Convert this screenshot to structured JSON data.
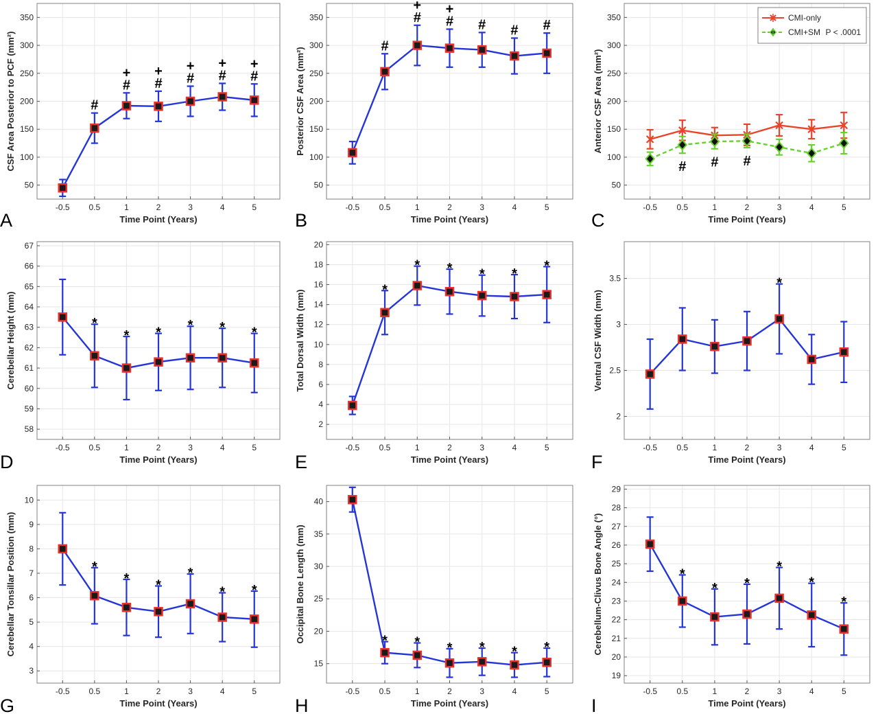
{
  "colors": {
    "blue": "#2435d8",
    "marker_red": "#e8312d",
    "marker_dark": "#1a1a1a",
    "cmi_only": "#e8442a",
    "cmi_sm": "#67d12e",
    "grid": "#e6e6e6",
    "frame": "#808080"
  },
  "chart_data": [
    {
      "type": "line",
      "panel": "A",
      "xlabel": "Time Point (Years)",
      "ylabel": "CSF Area Posterior to PCF (mm²)",
      "categories": [
        "-0.5",
        "0.5",
        "1",
        "2",
        "3",
        "4",
        "5"
      ],
      "ylim": [
        25,
        375
      ],
      "yticks": [
        50,
        100,
        150,
        200,
        250,
        300,
        350
      ],
      "series": [
        {
          "values": [
            45,
            152,
            192,
            191,
            200,
            208,
            202
          ],
          "err": [
            15,
            27,
            23,
            27,
            27,
            24,
            29
          ]
        }
      ],
      "annotations": [
        {
          "x": 1,
          "text": [
            "#"
          ]
        },
        {
          "x": 2,
          "text": [
            "+",
            "#"
          ]
        },
        {
          "x": 3,
          "text": [
            "+",
            "#"
          ]
        },
        {
          "x": 4,
          "text": [
            "+",
            "#"
          ]
        },
        {
          "x": 5,
          "text": [
            "+",
            "#"
          ]
        },
        {
          "x": 6,
          "text": [
            "+",
            "#"
          ]
        }
      ]
    },
    {
      "type": "line",
      "panel": "B",
      "xlabel": "Time Point (Years)",
      "ylabel": "Posterior CSF Area (mm²)",
      "categories": [
        "-0.5",
        "0.5",
        "1",
        "2",
        "3",
        "4",
        "5"
      ],
      "ylim": [
        25,
        375
      ],
      "yticks": [
        50,
        100,
        150,
        200,
        250,
        300,
        350
      ],
      "series": [
        {
          "values": [
            108,
            253,
            300,
            295,
            292,
            281,
            286
          ],
          "err": [
            20,
            32,
            36,
            34,
            31,
            32,
            36
          ]
        }
      ],
      "annotations": [
        {
          "x": 1,
          "text": [
            "#"
          ]
        },
        {
          "x": 2,
          "text": [
            "+",
            "#"
          ]
        },
        {
          "x": 3,
          "text": [
            "+",
            "#"
          ]
        },
        {
          "x": 4,
          "text": [
            "#"
          ]
        },
        {
          "x": 5,
          "text": [
            "#"
          ]
        },
        {
          "x": 6,
          "text": [
            "#"
          ]
        }
      ]
    },
    {
      "type": "line",
      "panel": "C",
      "xlabel": "Time Point (Years)",
      "ylabel": "Anterior CSF Area (mm²)",
      "categories": [
        "-0.5",
        "0.5",
        "1",
        "2",
        "3",
        "4",
        "5"
      ],
      "ylim": [
        25,
        375
      ],
      "yticks": [
        50,
        100,
        150,
        200,
        250,
        300,
        350
      ],
      "series": [
        {
          "name": "CMI-only",
          "values": [
            132,
            148,
            139,
            140,
            157,
            150,
            157
          ],
          "err": [
            17,
            18,
            14,
            19,
            19,
            17,
            23
          ]
        },
        {
          "name": "CMI+SM",
          "values": [
            97,
            122,
            128,
            129,
            118,
            107,
            125
          ],
          "err": [
            12,
            15,
            13,
            12,
            14,
            15,
            19
          ]
        }
      ],
      "legend_note": "P < .0001",
      "annotations": [
        {
          "x": 1,
          "text": [
            "#"
          ]
        },
        {
          "x": 2,
          "text": [
            "#"
          ]
        },
        {
          "x": 3,
          "text": [
            "#"
          ]
        }
      ]
    },
    {
      "type": "line",
      "panel": "D",
      "xlabel": "Time Point (Years)",
      "ylabel": "Cerebellar Height (mm)",
      "categories": [
        "-0.5",
        "0.5",
        "1",
        "2",
        "3",
        "4",
        "5"
      ],
      "ylim": [
        57.5,
        67.2
      ],
      "yticks": [
        58,
        59,
        60,
        61,
        62,
        63,
        64,
        65,
        66,
        67
      ],
      "series": [
        {
          "values": [
            63.5,
            61.6,
            61.0,
            61.3,
            61.5,
            61.5,
            61.25
          ],
          "err": [
            1.85,
            1.55,
            1.55,
            1.4,
            1.55,
            1.45,
            1.45
          ]
        }
      ],
      "annotations": [
        {
          "x": 1,
          "text": [
            "*"
          ]
        },
        {
          "x": 2,
          "text": [
            "*"
          ]
        },
        {
          "x": 3,
          "text": [
            "*"
          ]
        },
        {
          "x": 4,
          "text": [
            "*"
          ]
        },
        {
          "x": 5,
          "text": [
            "*"
          ]
        },
        {
          "x": 6,
          "text": [
            "*"
          ]
        }
      ]
    },
    {
      "type": "line",
      "panel": "E",
      "xlabel": "Time Point (Years)",
      "ylabel": "Total Dorsal Width (mm)",
      "categories": [
        "-0.5",
        "0.5",
        "1",
        "2",
        "3",
        "4",
        "5"
      ],
      "ylim": [
        0.5,
        20.3
      ],
      "yticks": [
        2,
        4,
        6,
        8,
        10,
        12,
        14,
        16,
        18,
        20
      ],
      "series": [
        {
          "values": [
            3.9,
            13.2,
            15.9,
            15.3,
            14.9,
            14.8,
            15.0
          ],
          "err": [
            0.9,
            2.2,
            1.95,
            2.25,
            2.05,
            2.2,
            2.8
          ]
        }
      ],
      "annotations": [
        {
          "x": 1,
          "text": [
            "*"
          ]
        },
        {
          "x": 2,
          "text": [
            "*"
          ]
        },
        {
          "x": 3,
          "text": [
            "*"
          ]
        },
        {
          "x": 4,
          "text": [
            "*"
          ]
        },
        {
          "x": 5,
          "text": [
            "*"
          ]
        },
        {
          "x": 6,
          "text": [
            "*"
          ]
        }
      ]
    },
    {
      "type": "line",
      "panel": "F",
      "xlabel": "Time Point (Years)",
      "ylabel": "Ventral CSF Width (mm)",
      "categories": [
        "-0.5",
        "0.5",
        "1",
        "2",
        "3",
        "4",
        "5"
      ],
      "ylim": [
        1.75,
        3.9
      ],
      "yticks": [
        2,
        2.5,
        3,
        3.5
      ],
      "series": [
        {
          "values": [
            2.46,
            2.84,
            2.76,
            2.82,
            3.06,
            2.62,
            2.7
          ],
          "err": [
            0.38,
            0.34,
            0.29,
            0.32,
            0.38,
            0.27,
            0.33
          ]
        }
      ],
      "annotations": [
        {
          "x": 4,
          "text": [
            "*"
          ]
        }
      ]
    },
    {
      "type": "line",
      "panel": "G",
      "xlabel": "Time Point (Years)",
      "ylabel": "Cerebellar Tonsillar Position (mm)",
      "categories": [
        "-0.5",
        "0.5",
        "1",
        "2",
        "3",
        "4",
        "5"
      ],
      "ylim": [
        2.5,
        10.6
      ],
      "yticks": [
        3,
        4,
        5,
        6,
        7,
        8,
        9,
        10
      ],
      "series": [
        {
          "values": [
            8.0,
            6.08,
            5.6,
            5.43,
            5.75,
            5.2,
            5.12
          ],
          "err": [
            1.48,
            1.15,
            1.15,
            1.05,
            1.22,
            1.0,
            1.15
          ]
        }
      ],
      "annotations": [
        {
          "x": 1,
          "text": [
            "*"
          ]
        },
        {
          "x": 2,
          "text": [
            "*"
          ]
        },
        {
          "x": 3,
          "text": [
            "*"
          ]
        },
        {
          "x": 4,
          "text": [
            "*"
          ]
        },
        {
          "x": 5,
          "text": [
            "*"
          ]
        },
        {
          "x": 6,
          "text": [
            "*"
          ]
        }
      ]
    },
    {
      "type": "line",
      "panel": "H",
      "xlabel": "Time Point (Years)",
      "ylabel": "Occipital Bone Length (mm)",
      "categories": [
        "-0.5",
        "0.5",
        "1",
        "2",
        "3",
        "4",
        "5"
      ],
      "ylim": [
        12,
        42.5
      ],
      "yticks": [
        15,
        20,
        25,
        30,
        35,
        40
      ],
      "series": [
        {
          "values": [
            40.3,
            16.7,
            16.3,
            15.1,
            15.3,
            14.8,
            15.2
          ],
          "err": [
            1.9,
            1.7,
            1.9,
            2.2,
            2.1,
            1.9,
            2.2
          ]
        }
      ],
      "annotations": [
        {
          "x": 1,
          "text": [
            "*"
          ]
        },
        {
          "x": 2,
          "text": [
            "*"
          ]
        },
        {
          "x": 3,
          "text": [
            "*"
          ]
        },
        {
          "x": 4,
          "text": [
            "*"
          ]
        },
        {
          "x": 5,
          "text": [
            "*"
          ]
        },
        {
          "x": 6,
          "text": [
            "*"
          ]
        }
      ]
    },
    {
      "type": "line",
      "panel": "I",
      "xlabel": "Time Point (Years)",
      "ylabel": "Cerebellum-Clivus Bone Angle (°)",
      "categories": [
        "-0.5",
        "0.5",
        "1",
        "2",
        "3",
        "4",
        "5"
      ],
      "ylim": [
        18.6,
        29.2
      ],
      "yticks": [
        19,
        20,
        21,
        22,
        23,
        24,
        25,
        26,
        27,
        28,
        29
      ],
      "series": [
        {
          "values": [
            26.05,
            23.0,
            22.15,
            22.3,
            23.15,
            22.25,
            21.5
          ],
          "err": [
            1.45,
            1.4,
            1.5,
            1.6,
            1.65,
            1.7,
            1.4
          ]
        }
      ],
      "annotations": [
        {
          "x": 1,
          "text": [
            "*"
          ]
        },
        {
          "x": 2,
          "text": [
            "*"
          ]
        },
        {
          "x": 3,
          "text": [
            "*"
          ]
        },
        {
          "x": 4,
          "text": [
            "*"
          ]
        },
        {
          "x": 5,
          "text": [
            "*"
          ]
        },
        {
          "x": 6,
          "text": [
            "*"
          ]
        }
      ]
    }
  ]
}
